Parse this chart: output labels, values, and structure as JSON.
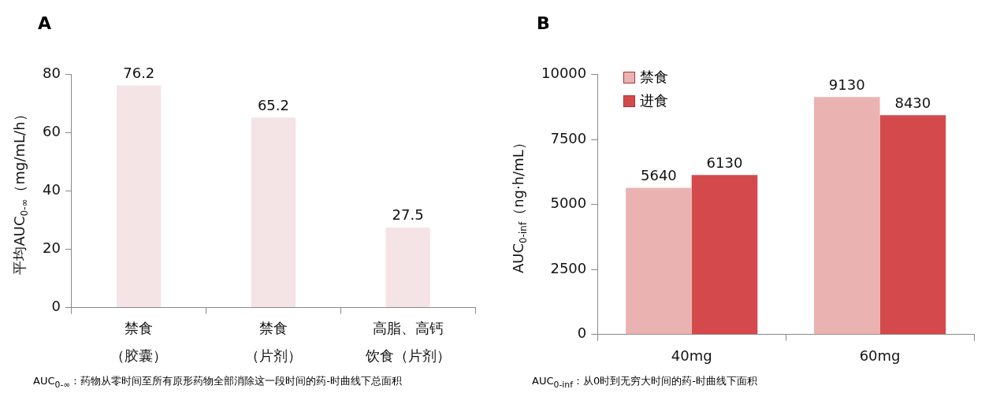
{
  "chart_data": [
    {
      "type": "bar",
      "title": "A",
      "ylabel": "平均AUC$_{0-∞}$（mg/mL/h）",
      "categories": [
        "禁食（胶囊）",
        "禁食（片剂）",
        "高脂、高钙饮食（片剂）"
      ],
      "values": [
        76.2,
        65.2,
        27.5
      ],
      "color": "#f5e4e6",
      "ylim": [
        0,
        80
      ],
      "yticks": [
        0,
        20,
        40,
        60,
        80
      ],
      "grid": false,
      "data_labels": true,
      "annotations": [
        "AUC$_{0-∞}$：药物从零时间至所有原形药物全部消除这一段时间的药-时曲线下总面积"
      ]
    },
    {
      "type": "bar",
      "title": "B",
      "ylabel": "AUC$_{0-inf}$（ng·h/mL）",
      "categories": [
        "40mg",
        "60mg"
      ],
      "series": [
        {
          "name": "禁食",
          "color": "#ebb2b2",
          "values": [
            5640,
            9130
          ]
        },
        {
          "name": "进食",
          "color": "#d44a4c",
          "values": [
            6130,
            8430
          ]
        }
      ],
      "ylim": [
        0,
        10000
      ],
      "yticks": [
        0,
        2500,
        5000,
        7500,
        10000
      ],
      "grid": false,
      "legend": "top left",
      "data_labels": true,
      "annotations": [
        "AUC$_{0-inf}$：从0时到无穷大时间的药-时曲线下面积"
      ]
    }
  ]
}
